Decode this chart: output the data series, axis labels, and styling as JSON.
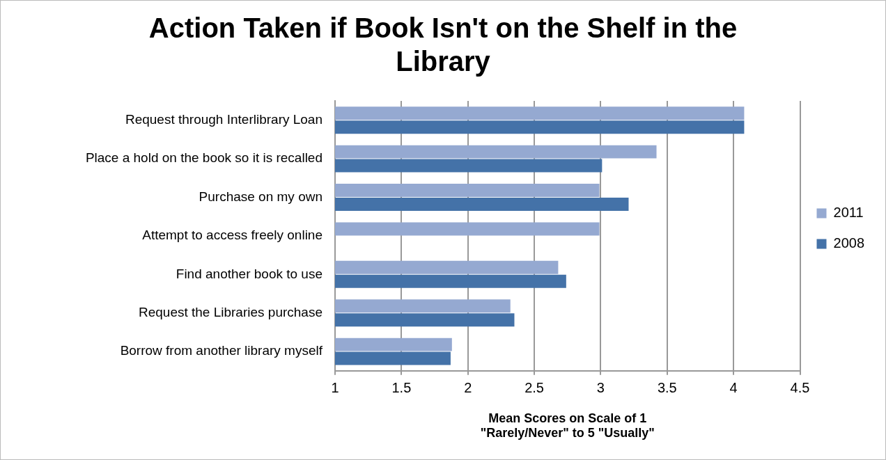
{
  "chart_data": {
    "type": "bar",
    "orientation": "horizontal",
    "title": "Action Taken if Book Isn't on the Shelf in the Library",
    "xlabel": "Mean Scores on Scale of 1 \"Rarely/Never\" to 5 \"Usually\"",
    "categories": [
      "Request through Interlibrary Loan",
      "Place a hold on the book so it is recalled",
      "Purchase on my own",
      "Attempt to access freely online",
      "Find another book to use",
      "Request the Libraries purchase",
      "Borrow from another library myself"
    ],
    "series": [
      {
        "name": "2011",
        "color": "#95a9d1",
        "values": [
          4.08,
          3.42,
          2.99,
          2.99,
          2.68,
          2.32,
          1.88
        ]
      },
      {
        "name": "2008",
        "color": "#4472a8",
        "values": [
          4.08,
          3.01,
          3.21,
          null,
          2.74,
          2.35,
          1.87
        ]
      }
    ],
    "xlim": [
      1,
      4.5
    ],
    "xticks": [
      1,
      1.5,
      2,
      2.5,
      3,
      3.5,
      4,
      4.5
    ],
    "grid": "x",
    "legend": "right"
  }
}
